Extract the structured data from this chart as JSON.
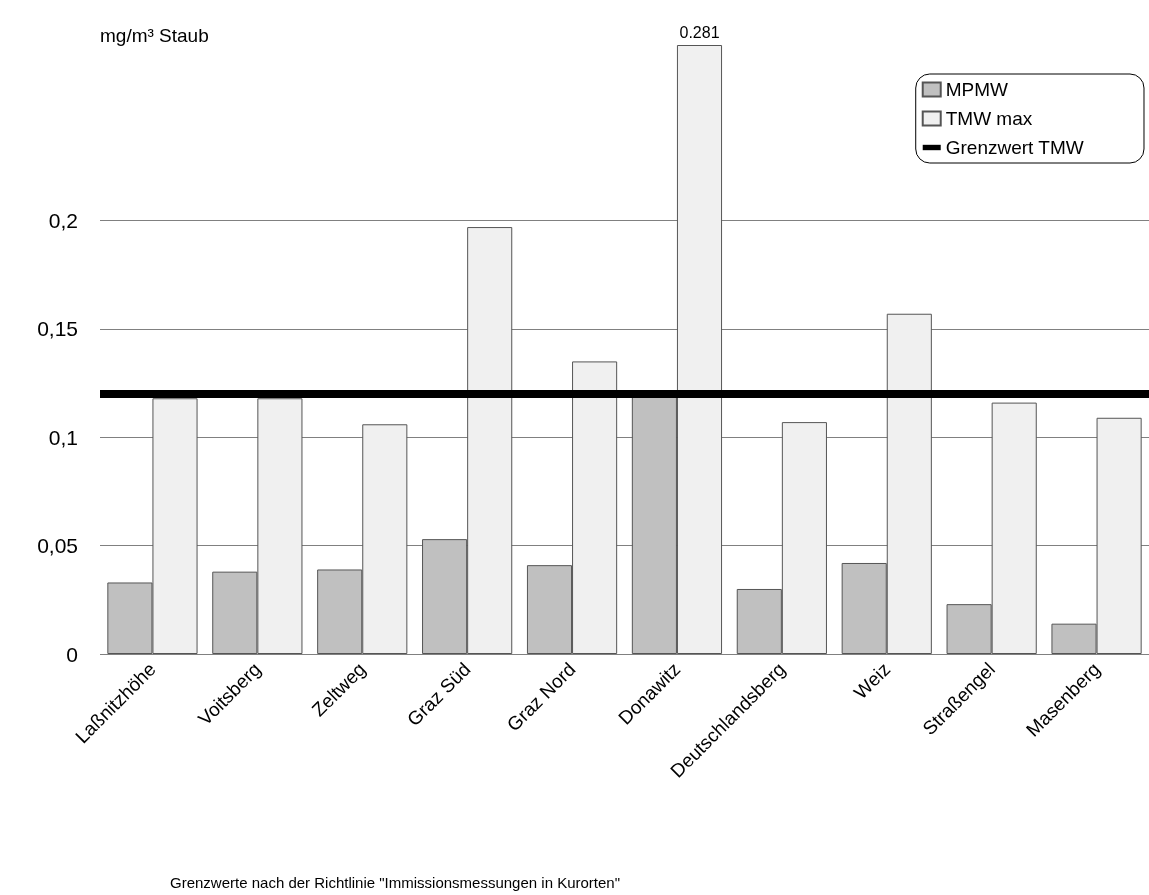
{
  "chart_data": {
    "type": "bar",
    "ylabel": "mg/m³ Staub",
    "categories": [
      "Laßnitzhöhe",
      "Voitsberg",
      "Zeltweg",
      "Graz Süd",
      "Graz Nord",
      "Donawitz",
      "Deutschlandsberg",
      "Weiz",
      "Straßengel",
      "Masenberg"
    ],
    "series": [
      {
        "name": "MPMW",
        "color": "#c0c0c0",
        "values": [
          0.033,
          0.038,
          0.039,
          0.053,
          0.041,
          0.12,
          0.03,
          0.042,
          0.023,
          0.014
        ]
      },
      {
        "name": "TMW max",
        "color": "#f0f0f0",
        "values": [
          0.118,
          0.118,
          0.106,
          0.197,
          0.135,
          0.281,
          0.107,
          0.157,
          0.116,
          0.109
        ],
        "value_labels": [
          null,
          null,
          null,
          null,
          null,
          "0.281",
          null,
          null,
          null,
          null
        ]
      }
    ],
    "ylim": [
      0,
      0.281
    ],
    "yticks": [
      {
        "value": 0,
        "label": "0"
      },
      {
        "value": 0.05,
        "label": "0,05"
      },
      {
        "value": 0.1,
        "label": "0,1"
      },
      {
        "value": 0.15,
        "label": "0,15"
      },
      {
        "value": 0.2,
        "label": "0,2"
      }
    ],
    "ref_lines": [
      {
        "axis": "y",
        "value": 0.12,
        "label": "Grenzwert TMW",
        "color": "#000000"
      }
    ],
    "grid": "y",
    "legend": "top right",
    "annotations": [
      "Grenzwerte nach der Richtlinie \"Immissionsmessungen in Kurorten\""
    ]
  }
}
